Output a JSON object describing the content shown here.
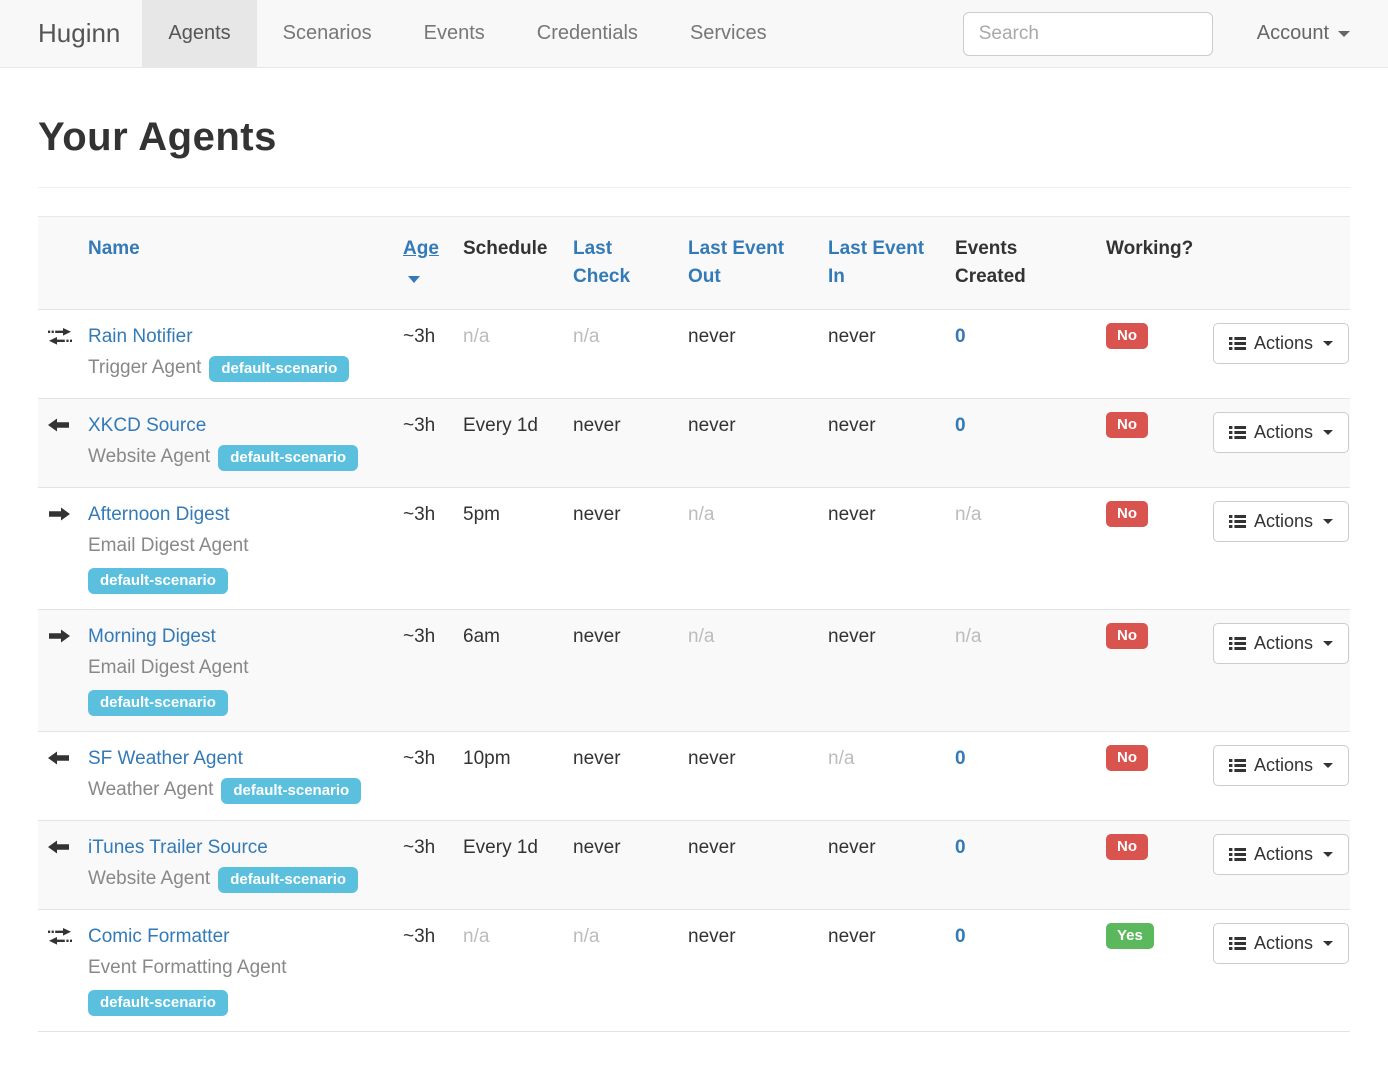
{
  "colors": {
    "link": "#337ab7",
    "badge_info": "#5bc0de",
    "label_danger": "#d9534f",
    "label_success": "#5cb85c",
    "navbar_bg": "#f8f8f8",
    "active_tab_bg": "#e7e7e7"
  },
  "navbar": {
    "brand": "Huginn",
    "items": [
      {
        "label": "Agents",
        "active": true
      },
      {
        "label": "Scenarios",
        "active": false
      },
      {
        "label": "Events",
        "active": false
      },
      {
        "label": "Credentials",
        "active": false
      },
      {
        "label": "Services",
        "active": false
      }
    ],
    "search_placeholder": "Search",
    "account_label": "Account"
  },
  "page": {
    "title": "Your Agents"
  },
  "table": {
    "headers": {
      "name": "Name",
      "age": "Age",
      "schedule": "Schedule",
      "last_check": "Last Check",
      "last_event_out": "Last Event Out",
      "last_event_in": "Last Event In",
      "events_created": "Events Created",
      "working": "Working?"
    },
    "sorted_by": "age",
    "actions_label": "Actions",
    "rows": [
      {
        "icon": "exchange-icon",
        "name": "Rain Notifier",
        "type": "Trigger Agent",
        "badge": "default-scenario",
        "badge_inline": true,
        "age": "~3h",
        "schedule": "n/a",
        "last_check": "n/a",
        "last_event_out": "never",
        "last_event_in": "never",
        "events_created": "0",
        "working": "No"
      },
      {
        "icon": "arrow-left-icon",
        "name": "XKCD Source",
        "type": "Website Agent",
        "badge": "default-scenario",
        "badge_inline": true,
        "age": "~3h",
        "schedule": "Every 1d",
        "last_check": "never",
        "last_event_out": "never",
        "last_event_in": "never",
        "events_created": "0",
        "working": "No"
      },
      {
        "icon": "arrow-right-icon",
        "name": "Afternoon Digest",
        "type": "Email Digest Agent",
        "badge": "default-scenario",
        "badge_inline": false,
        "age": "~3h",
        "schedule": "5pm",
        "last_check": "never",
        "last_event_out": "n/a",
        "last_event_in": "never",
        "events_created": "n/a",
        "working": "No"
      },
      {
        "icon": "arrow-right-icon",
        "name": "Morning Digest",
        "type": "Email Digest Agent",
        "badge": "default-scenario",
        "badge_inline": false,
        "age": "~3h",
        "schedule": "6am",
        "last_check": "never",
        "last_event_out": "n/a",
        "last_event_in": "never",
        "events_created": "n/a",
        "working": "No"
      },
      {
        "icon": "arrow-left-icon",
        "name": "SF Weather Agent",
        "type": "Weather Agent",
        "badge": "default-scenario",
        "badge_inline": true,
        "age": "~3h",
        "schedule": "10pm",
        "last_check": "never",
        "last_event_out": "never",
        "last_event_in": "n/a",
        "events_created": "0",
        "working": "No"
      },
      {
        "icon": "arrow-left-icon",
        "name": "iTunes Trailer Source",
        "type": "Website Agent",
        "badge": "default-scenario",
        "badge_inline": true,
        "age": "~3h",
        "schedule": "Every 1d",
        "last_check": "never",
        "last_event_out": "never",
        "last_event_in": "never",
        "events_created": "0",
        "working": "No"
      },
      {
        "icon": "exchange-icon",
        "name": "Comic Formatter",
        "type": "Event Formatting Agent",
        "badge": "default-scenario",
        "badge_inline": false,
        "age": "~3h",
        "schedule": "n/a",
        "last_check": "n/a",
        "last_event_out": "never",
        "last_event_in": "never",
        "events_created": "0",
        "working": "Yes"
      }
    ]
  }
}
